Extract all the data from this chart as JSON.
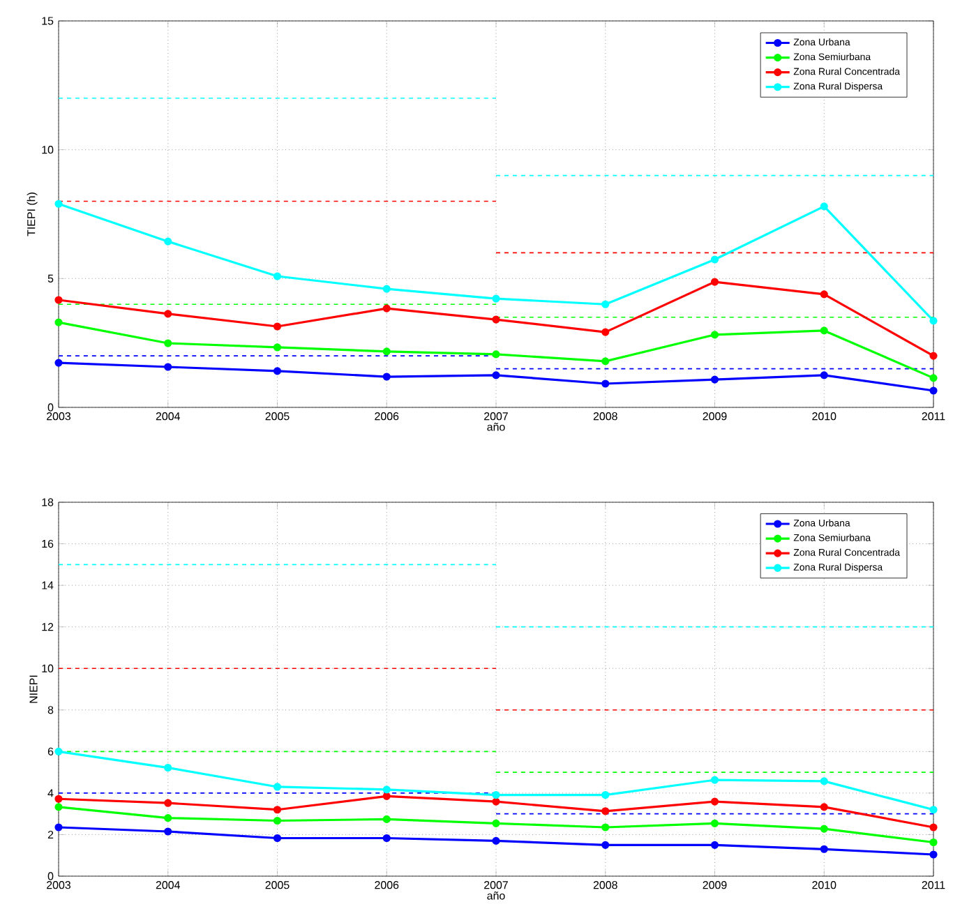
{
  "chart_data": [
    {
      "type": "line",
      "xlabel": "año",
      "ylabel": "TIEPI (h)",
      "x": [
        2003,
        2004,
        2005,
        2006,
        2007,
        2008,
        2009,
        2010,
        2011
      ],
      "xlim": [
        2003,
        2011
      ],
      "ylim": [
        0,
        15
      ],
      "xticks": [
        2003,
        2004,
        2005,
        2006,
        2007,
        2008,
        2009,
        2010,
        2011
      ],
      "yticks": [
        0,
        5,
        10,
        15
      ],
      "grid": true,
      "legend": "top right",
      "marker": "circle",
      "line_style": "solid",
      "series": [
        {
          "name": "Zona Urbana",
          "color": "#0000ff",
          "values": [
            1.73,
            1.57,
            1.41,
            1.19,
            1.25,
            0.92,
            1.08,
            1.25,
            0.65
          ]
        },
        {
          "name": "Zona Semiurbana",
          "color": "#00ff00",
          "values": [
            3.3,
            2.49,
            2.33,
            2.17,
            2.06,
            1.79,
            2.82,
            2.98,
            1.14
          ]
        },
        {
          "name": "Zona Rural Concentrada",
          "color": "#ff0000",
          "values": [
            4.17,
            3.63,
            3.14,
            3.84,
            3.41,
            2.92,
            4.87,
            4.39,
            2.0
          ]
        },
        {
          "name": "Zona Rural Dispersa",
          "color": "#00ffff",
          "values": [
            7.9,
            6.44,
            5.09,
            4.6,
            4.22,
            4.0,
            5.74,
            7.8,
            3.36
          ]
        },
        {
          "color": "#0000ff",
          "x": [
            2003,
            2007
          ],
          "values": [
            2,
            2
          ],
          "marker": "none",
          "line_style": "dashed"
        },
        {
          "color": "#0000ff",
          "x": [
            2007,
            2011
          ],
          "values": [
            1.5,
            1.5
          ],
          "marker": "none",
          "line_style": "dashed"
        },
        {
          "color": "#00ff00",
          "x": [
            2003,
            2007
          ],
          "values": [
            4,
            4
          ],
          "marker": "none",
          "line_style": "dashed"
        },
        {
          "color": "#00ff00",
          "x": [
            2007,
            2011
          ],
          "values": [
            3.5,
            3.5
          ],
          "marker": "none",
          "line_style": "dashed"
        },
        {
          "color": "#ff0000",
          "x": [
            2003,
            2007
          ],
          "values": [
            8,
            8
          ],
          "marker": "none",
          "line_style": "dashed"
        },
        {
          "color": "#ff0000",
          "x": [
            2007,
            2011
          ],
          "values": [
            6,
            6
          ],
          "marker": "none",
          "line_style": "dashed"
        },
        {
          "color": "#00ffff",
          "x": [
            2003,
            2007
          ],
          "values": [
            12,
            12
          ],
          "marker": "none",
          "line_style": "dashed"
        },
        {
          "color": "#00ffff",
          "x": [
            2007,
            2011
          ],
          "values": [
            9,
            9
          ],
          "marker": "none",
          "line_style": "dashed"
        }
      ]
    },
    {
      "type": "line",
      "xlabel": "año",
      "ylabel": "NIEPI",
      "x": [
        2003,
        2004,
        2005,
        2006,
        2007,
        2008,
        2009,
        2010,
        2011
      ],
      "xlim": [
        2003,
        2011
      ],
      "ylim": [
        0,
        18
      ],
      "xticks": [
        2003,
        2004,
        2005,
        2006,
        2007,
        2008,
        2009,
        2010,
        2011
      ],
      "yticks": [
        0,
        2,
        4,
        6,
        8,
        10,
        12,
        14,
        16,
        18
      ],
      "grid": true,
      "legend": "top right",
      "marker": "circle",
      "line_style": "solid",
      "series": [
        {
          "name": "Zona Urbana",
          "color": "#0000ff",
          "values": [
            2.35,
            2.15,
            1.83,
            1.83,
            1.7,
            1.5,
            1.5,
            1.3,
            1.04
          ]
        },
        {
          "name": "Zona Semiurbana",
          "color": "#00ff00",
          "values": [
            3.33,
            2.8,
            2.67,
            2.74,
            2.54,
            2.35,
            2.54,
            2.28,
            1.63
          ]
        },
        {
          "name": "Zona Rural Concentrada",
          "color": "#ff0000",
          "values": [
            3.72,
            3.52,
            3.2,
            3.85,
            3.59,
            3.13,
            3.59,
            3.33,
            2.35
          ]
        },
        {
          "name": "Zona Rural Dispersa",
          "color": "#00ffff",
          "values": [
            6.0,
            5.22,
            4.3,
            4.17,
            3.91,
            3.91,
            4.63,
            4.57,
            3.2
          ]
        },
        {
          "color": "#0000ff",
          "x": [
            2003,
            2007
          ],
          "values": [
            4,
            4
          ],
          "marker": "none",
          "line_style": "dashed"
        },
        {
          "color": "#0000ff",
          "x": [
            2007,
            2011
          ],
          "values": [
            3,
            3
          ],
          "marker": "none",
          "line_style": "dashed"
        },
        {
          "color": "#00ff00",
          "x": [
            2003,
            2007
          ],
          "values": [
            6,
            6
          ],
          "marker": "none",
          "line_style": "dashed"
        },
        {
          "color": "#00ff00",
          "x": [
            2007,
            2011
          ],
          "values": [
            5,
            5
          ],
          "marker": "none",
          "line_style": "dashed"
        },
        {
          "color": "#ff0000",
          "x": [
            2003,
            2007
          ],
          "values": [
            10,
            10
          ],
          "marker": "none",
          "line_style": "dashed"
        },
        {
          "color": "#ff0000",
          "x": [
            2007,
            2011
          ],
          "values": [
            8,
            8
          ],
          "marker": "none",
          "line_style": "dashed"
        },
        {
          "color": "#00ffff",
          "x": [
            2003,
            2007
          ],
          "values": [
            15,
            15
          ],
          "marker": "none",
          "line_style": "dashed"
        },
        {
          "color": "#00ffff",
          "x": [
            2007,
            2011
          ],
          "values": [
            12,
            12
          ],
          "marker": "none",
          "line_style": "dashed"
        }
      ]
    }
  ]
}
